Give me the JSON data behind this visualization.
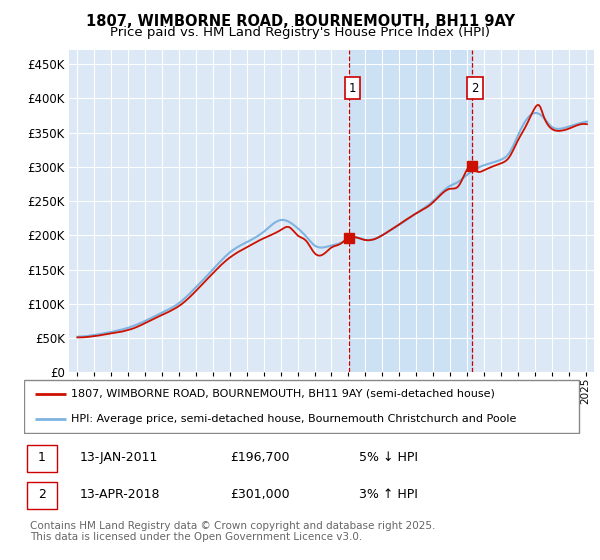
{
  "title": "1807, WIMBORNE ROAD, BOURNEMOUTH, BH11 9AY",
  "subtitle": "Price paid vs. HM Land Registry's House Price Index (HPI)",
  "ytick_values": [
    0,
    50000,
    100000,
    150000,
    200000,
    250000,
    300000,
    350000,
    400000,
    450000
  ],
  "ytick_labels": [
    "£0",
    "£50K",
    "£100K",
    "£150K",
    "£200K",
    "£250K",
    "£300K",
    "£350K",
    "£400K",
    "£450K"
  ],
  "ylim": [
    0,
    470000
  ],
  "xlim_start": 1994.5,
  "xlim_end": 2025.5,
  "plot_bg_color": "#dce8f5",
  "grid_color": "#ffffff",
  "hpi_color": "#7fb3e0",
  "price_color": "#cc1100",
  "vline_color": "#cc0000",
  "fill_color": "#c8dff5",
  "marker1_year": 2011.04,
  "marker2_year": 2018.29,
  "marker1_price": 196700,
  "marker2_price": 301000,
  "legend_price_label": "1807, WIMBORNE ROAD, BOURNEMOUTH, BH11 9AY (semi-detached house)",
  "legend_hpi_label": "HPI: Average price, semi-detached house, Bournemouth Christchurch and Poole",
  "table_row1": [
    "1",
    "13-JAN-2011",
    "£196,700",
    "5% ↓ HPI"
  ],
  "table_row2": [
    "2",
    "13-APR-2018",
    "£301,000",
    "3% ↑ HPI"
  ],
  "footer": "Contains HM Land Registry data © Crown copyright and database right 2025.\nThis data is licensed under the Open Government Licence v3.0."
}
